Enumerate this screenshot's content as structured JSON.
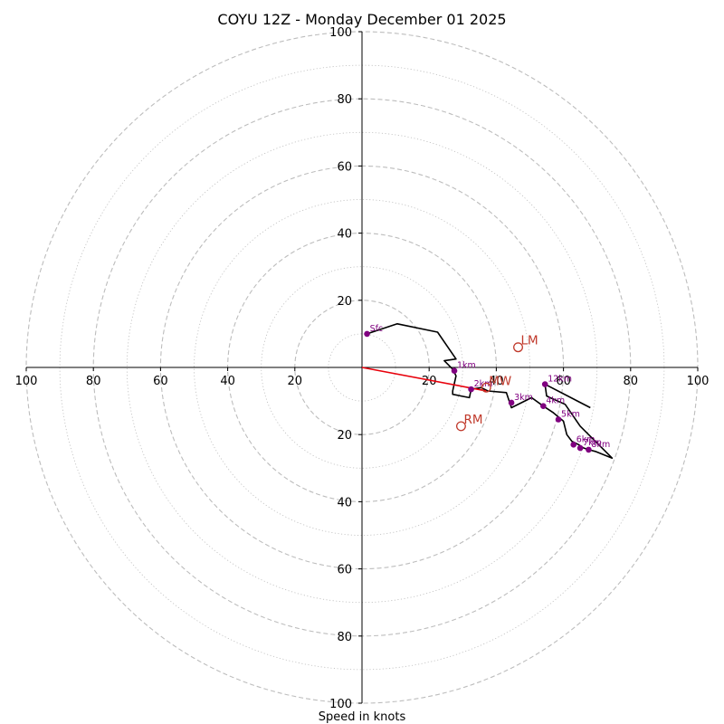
{
  "chart_data": {
    "type": "hodograph",
    "title": "COYU 12Z - Monday December 01 2025",
    "xlabel": "Speed in knots",
    "units": "knots",
    "range": [
      -100,
      100
    ],
    "rings_dashed": [
      20,
      40,
      60,
      80,
      100
    ],
    "rings_dotted": [
      10,
      30,
      50,
      70,
      90
    ],
    "x_ticks": [
      "100",
      "80",
      "60",
      "40",
      "20",
      "20",
      "40",
      "60",
      "80",
      "100"
    ],
    "x_tick_values": [
      -100,
      -80,
      -60,
      -40,
      -20,
      20,
      40,
      60,
      80,
      100
    ],
    "y_ticks": [
      "100",
      "80",
      "60",
      "40",
      "20",
      "20",
      "40",
      "60",
      "80",
      "100"
    ],
    "y_tick_values": [
      100,
      80,
      60,
      40,
      20,
      -20,
      -40,
      -60,
      -80,
      -100
    ],
    "colors": {
      "trace": "#000000",
      "height_points": "#800080",
      "mean_wind_line": "#e8000b",
      "motion_markers": "#c0392b",
      "rings": "#bdbdbd"
    },
    "trace": [
      [
        1.5,
        10
      ],
      [
        10.5,
        13
      ],
      [
        22.5,
        10.5
      ],
      [
        28,
        2.5
      ],
      [
        24.5,
        2
      ],
      [
        27,
        -0.5
      ],
      [
        28,
        -2.5
      ],
      [
        27,
        -7
      ],
      [
        27,
        -8
      ],
      [
        32,
        -9
      ],
      [
        32.5,
        -6.5
      ],
      [
        35.5,
        -6
      ],
      [
        37.5,
        -7
      ],
      [
        43,
        -7.5
      ],
      [
        44.5,
        -12
      ],
      [
        48.5,
        -10
      ],
      [
        50.5,
        -9
      ],
      [
        54,
        -11.5
      ],
      [
        57,
        -13.5
      ],
      [
        60,
        -16
      ],
      [
        61,
        -20
      ],
      [
        62.5,
        -22
      ],
      [
        64.5,
        -23
      ],
      [
        66,
        -24
      ],
      [
        67.5,
        -24.5
      ],
      [
        69.5,
        -25
      ],
      [
        72,
        -26
      ],
      [
        74.5,
        -27
      ],
      [
        65,
        -17.5
      ],
      [
        60.5,
        -11
      ],
      [
        56,
        -9
      ],
      [
        55,
        -8.5
      ],
      [
        54.5,
        -5
      ],
      [
        68,
        -12
      ]
    ],
    "height_points": [
      {
        "label": "Sfc",
        "u": 1.5,
        "v": 10
      },
      {
        "label": "1km",
        "u": 27.5,
        "v": -1
      },
      {
        "label": "2km",
        "u": 32.5,
        "v": -6.5
      },
      {
        "label": "3km",
        "u": 44.5,
        "v": -10.5
      },
      {
        "label": "4km",
        "u": 54,
        "v": -11.5
      },
      {
        "label": "5km",
        "u": 58.5,
        "v": -15.5
      },
      {
        "label": "6km",
        "u": 63,
        "v": -23
      },
      {
        "label": "7km",
        "u": 65,
        "v": -24
      },
      {
        "label": "8km",
        "u": 67.5,
        "v": -24.5
      },
      {
        "label": "12km",
        "u": 54.5,
        "v": -5
      }
    ],
    "mean_wind_line": {
      "from": [
        0,
        0
      ],
      "to": [
        37,
        -7
      ]
    },
    "storm_motion": [
      {
        "label": "LM",
        "u": 46.5,
        "v": 6
      },
      {
        "label": "MW",
        "u": 37,
        "v": -6
      },
      {
        "label": "RM",
        "u": 29.5,
        "v": -17.5
      }
    ]
  }
}
